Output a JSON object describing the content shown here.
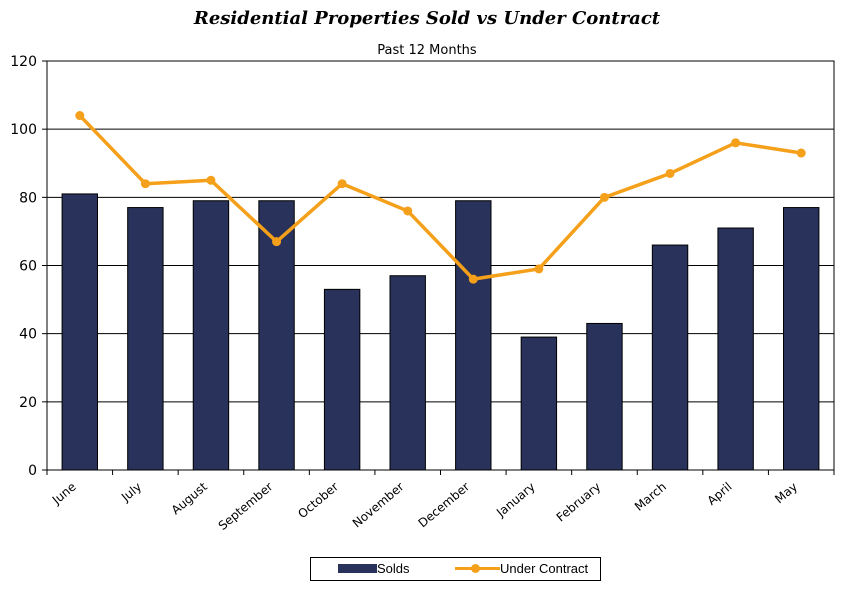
{
  "chart_data": {
    "type": "bar",
    "title": "Residential Properties Sold vs Under Contract",
    "subtitle": "Past 12 Months",
    "categories": [
      "June",
      "July",
      "August",
      "September",
      "October",
      "November",
      "December",
      "January",
      "February",
      "March",
      "April",
      "May"
    ],
    "series": [
      {
        "name": "Solds",
        "type": "bar",
        "color": "#28325a",
        "values": [
          81,
          77,
          79,
          79,
          53,
          57,
          79,
          39,
          43,
          66,
          71,
          77
        ]
      },
      {
        "name": "Under Contract",
        "type": "line",
        "color": "#f5a01a",
        "values": [
          104,
          84,
          85,
          67,
          84,
          76,
          56,
          59,
          80,
          87,
          96,
          93
        ]
      }
    ],
    "ylim": [
      0,
      120
    ],
    "yticks": [
      0,
      20,
      40,
      60,
      80,
      100,
      120
    ],
    "grid": true,
    "legend": "bottom"
  }
}
